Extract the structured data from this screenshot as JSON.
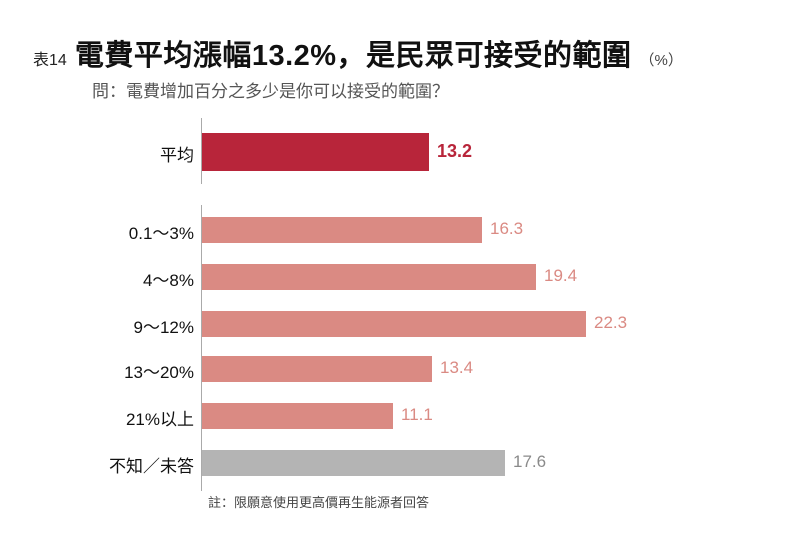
{
  "header": {
    "table_no": "表14",
    "title": "電費平均漲幅13.2%，是民眾可接受的範圍",
    "unit": "（%）",
    "question": "問：電費增加百分之多少是你可以接受的範圍？"
  },
  "note": "註：限願意使用更高價再生能源者回答",
  "colors": {
    "average": "#b8253a",
    "range": "#da8a83",
    "unknown": "#b4b4b4"
  },
  "chart_data": {
    "type": "bar",
    "orientation": "horizontal",
    "title": "電費平均漲幅13.2%，是民眾可接受的範圍",
    "subtitle": "問：電費增加百分之多少是你可以接受的範圍？",
    "unit": "%",
    "categories": [
      "平均",
      "0.1～3%",
      "4～8%",
      "9～12%",
      "13～20%",
      "21%以上",
      "不知／未答"
    ],
    "values": [
      13.2,
      16.3,
      19.4,
      22.3,
      13.4,
      11.1,
      17.6
    ],
    "value_labels": [
      "13.2",
      "16.3",
      "19.4",
      "22.3",
      "13.4",
      "11.1",
      "17.6"
    ],
    "xlabel": "",
    "ylabel": "",
    "xlim": [
      0,
      25
    ],
    "grid": false,
    "legend": null,
    "annotations": [
      "註：限願意使用更高價再生能源者回答"
    ]
  }
}
